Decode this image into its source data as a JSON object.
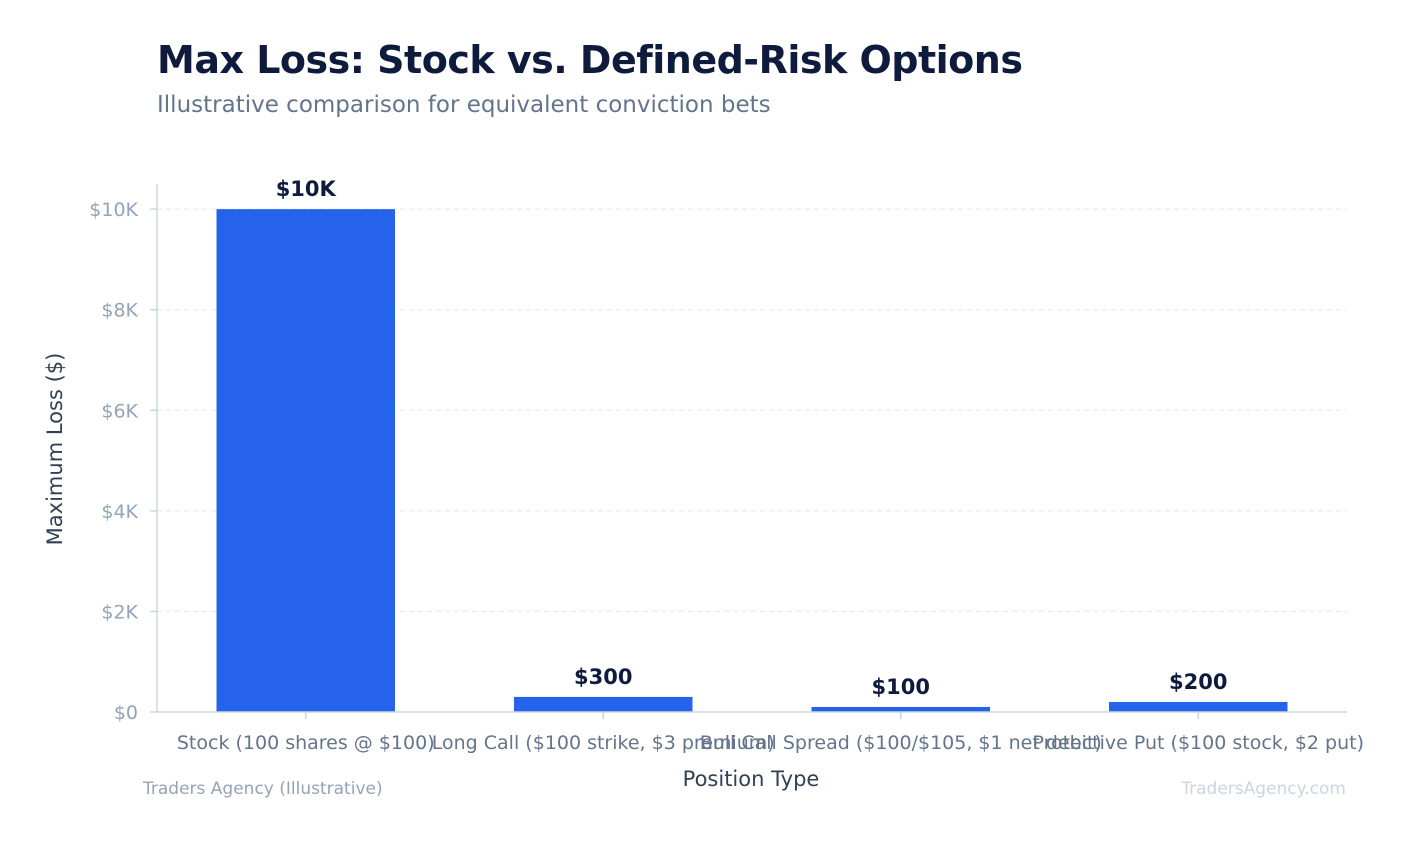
{
  "chart_data": {
    "type": "bar",
    "title": "Max Loss: Stock vs. Defined-Risk Options",
    "subtitle": "Illustrative comparison for equivalent conviction bets",
    "xlabel": "Position Type",
    "ylabel": "Maximum Loss ($)",
    "categories": [
      "Stock (100 shares @ $100)",
      "Long Call ($100 strike, $3 premium)",
      "Bull Call Spread ($100/$105, $1 net debit)",
      "Protective Put ($100 stock, $2 put)"
    ],
    "values": [
      10000,
      300,
      100,
      200
    ],
    "value_labels": [
      "$10K",
      "$300",
      "$100",
      "$200"
    ],
    "ylim": [
      0,
      10500
    ],
    "yticks": [
      0,
      2000,
      4000,
      6000,
      8000,
      10000
    ],
    "ytick_labels": [
      "$0",
      "$2K",
      "$4K",
      "$6K",
      "$8K",
      "$10K"
    ],
    "grid": true,
    "bar_color": "#2563eb"
  },
  "footer": {
    "source": "Traders Agency (Illustrative)",
    "watermark": "TradersAgency.com"
  }
}
